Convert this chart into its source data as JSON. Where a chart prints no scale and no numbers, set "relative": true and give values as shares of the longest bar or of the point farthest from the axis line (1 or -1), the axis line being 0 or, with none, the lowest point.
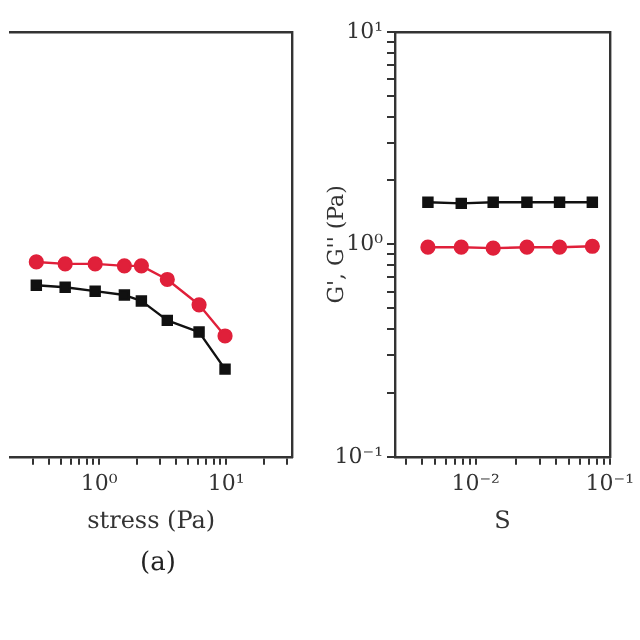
{
  "chart_data": [
    {
      "type": "line",
      "xlabel": "stress (Pa)",
      "annotations": [
        "(a)"
      ],
      "relative": true,
      "log": "x",
      "grid": false,
      "legend": false,
      "tick_labels": "x",
      "xlim": [
        0.2,
        33
      ],
      "xticks": [
        {
          "value": 0.3,
          "label": null
        },
        {
          "value": 0.4,
          "label": null
        },
        {
          "value": 0.5,
          "label": null
        },
        {
          "value": 0.6,
          "label": null
        },
        {
          "value": 0.7,
          "label": null
        },
        {
          "value": 0.8,
          "label": null
        },
        {
          "value": 0.9,
          "label": null
        },
        {
          "value": 1,
          "label": "10⁰"
        },
        {
          "value": 2,
          "label": null
        },
        {
          "value": 3,
          "label": null
        },
        {
          "value": 4,
          "label": null
        },
        {
          "value": 5,
          "label": null
        },
        {
          "value": 6,
          "label": null
        },
        {
          "value": 7,
          "label": null
        },
        {
          "value": 8,
          "label": null
        },
        {
          "value": 9,
          "label": null
        },
        {
          "value": 10,
          "label": "10¹"
        },
        {
          "value": 20,
          "label": null
        },
        {
          "value": 30,
          "label": null
        }
      ],
      "series": [
        {
          "color": "#e0203a",
          "marker": "circle",
          "x": [
            0.32,
            0.54,
            0.93,
            1.58,
            2.15,
            3.44,
            6.12,
            9.8
          ],
          "values": [
            1,
            0.99,
            0.99,
            0.98,
            0.98,
            0.91,
            0.78,
            0.62
          ]
        },
        {
          "color": "#111111",
          "marker": "square",
          "x": [
            0.32,
            0.54,
            0.93,
            1.58,
            2.15,
            3.44,
            6.12,
            9.8
          ],
          "values": [
            0.88,
            0.87,
            0.85,
            0.83,
            0.8,
            0.7,
            0.64,
            0.45
          ]
        }
      ]
    },
    {
      "type": "line",
      "xlabel": "S",
      "ylabel": "G', G'' (Pa)",
      "log": "xy",
      "grid": false,
      "legend": false,
      "xlim": [
        0.0025,
        0.1
      ],
      "xticks": [
        {
          "value": 0.003,
          "label": null
        },
        {
          "value": 0.004,
          "label": null
        },
        {
          "value": 0.005,
          "label": null
        },
        {
          "value": 0.006,
          "label": null
        },
        {
          "value": 0.007,
          "label": null
        },
        {
          "value": 0.008,
          "label": null
        },
        {
          "value": 0.009,
          "label": null
        },
        {
          "value": 0.01,
          "label": "10⁻²"
        },
        {
          "value": 0.02,
          "label": null
        },
        {
          "value": 0.03,
          "label": null
        },
        {
          "value": 0.04,
          "label": null
        },
        {
          "value": 0.05,
          "label": null
        },
        {
          "value": 0.06,
          "label": null
        },
        {
          "value": 0.07,
          "label": null
        },
        {
          "value": 0.08,
          "label": null
        },
        {
          "value": 0.09,
          "label": null
        },
        {
          "value": 0.1,
          "label": "10⁻¹"
        }
      ],
      "ylim": [
        0.1,
        10
      ],
      "yticks": [
        {
          "value": 0.1,
          "label": "10⁻¹"
        },
        {
          "value": 0.2,
          "label": null
        },
        {
          "value": 0.3,
          "label": null
        },
        {
          "value": 0.4,
          "label": null
        },
        {
          "value": 0.5,
          "label": null
        },
        {
          "value": 0.6,
          "label": null
        },
        {
          "value": 0.7,
          "label": null
        },
        {
          "value": 0.8,
          "label": null
        },
        {
          "value": 0.9,
          "label": null
        },
        {
          "value": 1,
          "label": "10⁰"
        },
        {
          "value": 2,
          "label": null
        },
        {
          "value": 3,
          "label": null
        },
        {
          "value": 4,
          "label": null
        },
        {
          "value": 5,
          "label": null
        },
        {
          "value": 6,
          "label": null
        },
        {
          "value": 7,
          "label": null
        },
        {
          "value": 8,
          "label": null
        },
        {
          "value": 9,
          "label": null
        },
        {
          "value": 10,
          "label": "10¹"
        }
      ],
      "series": [
        {
          "color": "#111111",
          "marker": "square",
          "x": [
            0.0044,
            0.0078,
            0.0135,
            0.0241,
            0.0422,
            0.0741
          ],
          "values": [
            1.58,
            1.56,
            1.58,
            1.58,
            1.58,
            1.58
          ]
        },
        {
          "color": "#e0203a",
          "marker": "circle",
          "x": [
            0.0044,
            0.0078,
            0.0135,
            0.0241,
            0.0422,
            0.0741
          ],
          "values": [
            0.97,
            0.97,
            0.96,
            0.97,
            0.97,
            0.98
          ]
        }
      ]
    }
  ]
}
